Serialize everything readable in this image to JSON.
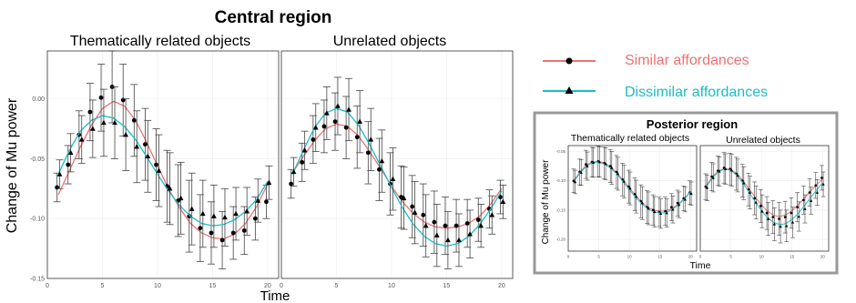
{
  "colors": {
    "similar": "#f07070",
    "dissimilar": "#1cbcc4",
    "frame": "#999999",
    "grid": "#ececec"
  },
  "central": {
    "title": "Central region",
    "ylabel": "Change of Mu power",
    "xlabel": "Time",
    "ticks_x": [
      "0",
      "5",
      "10",
      "15",
      "20"
    ],
    "ticks_y": [
      "0.00",
      "-0.05",
      "-0.10",
      "-0.15"
    ],
    "panels": [
      "Thematically related objects",
      "Unrelated objects"
    ]
  },
  "posterior": {
    "title": "Posterior region",
    "ylabel": "Change of Mu power",
    "xlabel": "Time",
    "ticks_x": [
      "0",
      "5",
      "10",
      "15",
      "20"
    ],
    "ticks_y": [
      "-0.05",
      "-0.10",
      "-0.15",
      "-0.20"
    ],
    "panels": [
      "Thematically related objects",
      "Unrelated objects"
    ]
  },
  "legend": {
    "similar": "Similar affordances",
    "dissimilar": "Dissimilar affordances"
  },
  "chart_data": [
    {
      "type": "line",
      "region": "central",
      "panel": "Thematically related objects",
      "x": [
        1,
        2,
        3,
        4,
        5,
        6,
        7,
        8,
        9,
        10,
        11,
        12,
        13,
        14,
        15,
        16,
        17,
        18,
        19,
        20
      ],
      "xlim": [
        0,
        21
      ],
      "ylim": [
        -0.15,
        0.04
      ],
      "series": [
        {
          "name": "Similar affordances",
          "marker": "circle",
          "points": [
            -0.074,
            -0.055,
            -0.03,
            -0.011,
            0.001,
            0.01,
            -0.001,
            -0.018,
            -0.038,
            -0.055,
            -0.073,
            -0.085,
            -0.098,
            -0.108,
            -0.112,
            -0.118,
            -0.112,
            -0.11,
            -0.1,
            -0.086
          ],
          "error": [
            0.012,
            0.016,
            0.02,
            0.024,
            0.028,
            0.03,
            0.03,
            0.03,
            0.03,
            0.03,
            0.03,
            0.03,
            0.03,
            0.028,
            0.026,
            0.024,
            0.022,
            0.02,
            0.018,
            0.014
          ],
          "fit": [
            -0.08,
            -0.06,
            -0.04,
            -0.022,
            -0.008,
            -0.002,
            -0.006,
            -0.018,
            -0.036,
            -0.056,
            -0.075,
            -0.091,
            -0.104,
            -0.112,
            -0.116,
            -0.117,
            -0.113,
            -0.104,
            -0.09,
            -0.071
          ]
        },
        {
          "name": "Dissimilar affordances",
          "marker": "triangle",
          "points": [
            -0.063,
            -0.045,
            -0.034,
            -0.025,
            -0.02,
            -0.02,
            -0.03,
            -0.04,
            -0.048,
            -0.06,
            -0.075,
            -0.083,
            -0.092,
            -0.096,
            -0.098,
            -0.099,
            -0.096,
            -0.094,
            -0.085,
            -0.07
          ],
          "error": [
            0.012,
            0.016,
            0.02,
            0.024,
            0.028,
            0.03,
            0.03,
            0.03,
            0.03,
            0.03,
            0.03,
            0.03,
            0.03,
            0.028,
            0.026,
            0.024,
            0.022,
            0.02,
            0.018,
            0.014
          ],
          "fit": [
            -0.063,
            -0.043,
            -0.027,
            -0.018,
            -0.014,
            -0.016,
            -0.023,
            -0.034,
            -0.048,
            -0.063,
            -0.077,
            -0.089,
            -0.098,
            -0.104,
            -0.106,
            -0.105,
            -0.101,
            -0.094,
            -0.084,
            -0.069
          ]
        }
      ]
    },
    {
      "type": "line",
      "region": "central",
      "panel": "Unrelated objects",
      "x": [
        1,
        2,
        3,
        4,
        5,
        6,
        7,
        8,
        9,
        10,
        11,
        12,
        13,
        14,
        15,
        16,
        17,
        18,
        19,
        20
      ],
      "xlim": [
        0,
        21
      ],
      "ylim": [
        -0.15,
        0.04
      ],
      "series": [
        {
          "name": "Similar affordances",
          "marker": "circle",
          "points": [
            -0.071,
            -0.053,
            -0.034,
            -0.023,
            -0.019,
            -0.024,
            -0.032,
            -0.045,
            -0.059,
            -0.071,
            -0.082,
            -0.09,
            -0.097,
            -0.103,
            -0.106,
            -0.106,
            -0.104,
            -0.101,
            -0.092,
            -0.082
          ],
          "error": [
            0.012,
            0.016,
            0.02,
            0.022,
            0.024,
            0.026,
            0.026,
            0.026,
            0.026,
            0.026,
            0.026,
            0.026,
            0.026,
            0.026,
            0.024,
            0.022,
            0.02,
            0.018,
            0.016,
            0.014
          ],
          "fit": [
            -0.062,
            -0.048,
            -0.035,
            -0.025,
            -0.021,
            -0.023,
            -0.031,
            -0.044,
            -0.058,
            -0.073,
            -0.086,
            -0.096,
            -0.103,
            -0.107,
            -0.108,
            -0.107,
            -0.104,
            -0.098,
            -0.088,
            -0.075
          ]
        },
        {
          "name": "Dissimilar affordances",
          "marker": "triangle",
          "points": [
            -0.061,
            -0.043,
            -0.024,
            -0.012,
            -0.006,
            -0.009,
            -0.019,
            -0.034,
            -0.052,
            -0.067,
            -0.083,
            -0.095,
            -0.106,
            -0.114,
            -0.118,
            -0.118,
            -0.113,
            -0.106,
            -0.097,
            -0.086
          ],
          "error": [
            0.012,
            0.016,
            0.02,
            0.022,
            0.024,
            0.026,
            0.026,
            0.026,
            0.026,
            0.026,
            0.026,
            0.026,
            0.026,
            0.026,
            0.024,
            0.022,
            0.02,
            0.018,
            0.016,
            0.014
          ],
          "fit": [
            -0.063,
            -0.043,
            -0.024,
            -0.012,
            -0.008,
            -0.011,
            -0.022,
            -0.038,
            -0.056,
            -0.074,
            -0.091,
            -0.105,
            -0.115,
            -0.121,
            -0.123,
            -0.121,
            -0.115,
            -0.105,
            -0.092,
            -0.077
          ]
        }
      ]
    },
    {
      "type": "line",
      "region": "posterior",
      "panel": "Thematically related objects",
      "x": [
        1,
        2,
        3,
        4,
        5,
        6,
        7,
        8,
        9,
        10,
        11,
        12,
        13,
        14,
        15,
        16,
        17,
        18,
        19,
        20
      ],
      "xlim": [
        0,
        21
      ],
      "ylim": [
        -0.22,
        -0.04
      ],
      "series": [
        {
          "name": "Similar affordances",
          "marker": "circle",
          "points": [
            -0.1,
            -0.085,
            -0.072,
            -0.068,
            -0.067,
            -0.07,
            -0.075,
            -0.085,
            -0.098,
            -0.11,
            -0.123,
            -0.135,
            -0.145,
            -0.15,
            -0.153,
            -0.152,
            -0.145,
            -0.138,
            -0.13,
            -0.12
          ],
          "error": [
            0.02,
            0.022,
            0.024,
            0.025,
            0.026,
            0.027,
            0.028,
            0.028,
            0.028,
            0.028,
            0.028,
            0.028,
            0.028,
            0.026,
            0.025,
            0.024,
            0.023,
            0.022,
            0.021,
            0.02
          ],
          "fit": [
            -0.098,
            -0.084,
            -0.073,
            -0.068,
            -0.067,
            -0.07,
            -0.077,
            -0.087,
            -0.099,
            -0.112,
            -0.125,
            -0.136,
            -0.145,
            -0.15,
            -0.152,
            -0.151,
            -0.147,
            -0.14,
            -0.13,
            -0.118
          ]
        },
        {
          "name": "Dissimilar affordances",
          "marker": "triangle",
          "points": [
            -0.102,
            -0.086,
            -0.075,
            -0.069,
            -0.068,
            -0.071,
            -0.078,
            -0.088,
            -0.101,
            -0.113,
            -0.127,
            -0.138,
            -0.147,
            -0.153,
            -0.156,
            -0.155,
            -0.149,
            -0.141,
            -0.132,
            -0.122
          ],
          "error": [
            0.02,
            0.022,
            0.024,
            0.025,
            0.026,
            0.027,
            0.028,
            0.028,
            0.028,
            0.028,
            0.028,
            0.028,
            0.028,
            0.026,
            0.025,
            0.024,
            0.023,
            0.022,
            0.021,
            0.02
          ],
          "fit": [
            -0.1,
            -0.086,
            -0.075,
            -0.069,
            -0.068,
            -0.072,
            -0.079,
            -0.089,
            -0.102,
            -0.115,
            -0.128,
            -0.139,
            -0.148,
            -0.153,
            -0.155,
            -0.154,
            -0.149,
            -0.141,
            -0.131,
            -0.119
          ]
        }
      ]
    },
    {
      "type": "line",
      "region": "posterior",
      "panel": "Unrelated objects",
      "x": [
        1,
        2,
        3,
        4,
        5,
        6,
        7,
        8,
        9,
        10,
        11,
        12,
        13,
        14,
        15,
        16,
        17,
        18,
        19,
        20
      ],
      "xlim": [
        0,
        21
      ],
      "ylim": [
        -0.22,
        -0.04
      ],
      "series": [
        {
          "name": "Similar affordances",
          "marker": "circle",
          "points": [
            -0.11,
            -0.093,
            -0.083,
            -0.078,
            -0.08,
            -0.088,
            -0.1,
            -0.115,
            -0.13,
            -0.143,
            -0.155,
            -0.162,
            -0.165,
            -0.162,
            -0.155,
            -0.145,
            -0.133,
            -0.12,
            -0.108,
            -0.095
          ],
          "error": [
            0.022,
            0.024,
            0.025,
            0.026,
            0.027,
            0.028,
            0.028,
            0.028,
            0.028,
            0.028,
            0.028,
            0.028,
            0.028,
            0.027,
            0.026,
            0.025,
            0.024,
            0.023,
            0.022,
            0.021
          ],
          "fit": [
            -0.108,
            -0.093,
            -0.083,
            -0.079,
            -0.081,
            -0.088,
            -0.1,
            -0.114,
            -0.128,
            -0.141,
            -0.152,
            -0.159,
            -0.161,
            -0.158,
            -0.151,
            -0.141,
            -0.13,
            -0.118,
            -0.107,
            -0.097
          ]
        },
        {
          "name": "Dissimilar affordances",
          "marker": "triangle",
          "points": [
            -0.112,
            -0.095,
            -0.084,
            -0.08,
            -0.082,
            -0.091,
            -0.104,
            -0.12,
            -0.137,
            -0.152,
            -0.165,
            -0.174,
            -0.178,
            -0.177,
            -0.171,
            -0.161,
            -0.148,
            -0.134,
            -0.12,
            -0.106
          ],
          "error": [
            0.022,
            0.024,
            0.025,
            0.026,
            0.027,
            0.028,
            0.028,
            0.028,
            0.028,
            0.028,
            0.028,
            0.028,
            0.028,
            0.027,
            0.026,
            0.025,
            0.024,
            0.023,
            0.022,
            0.021
          ],
          "fit": [
            -0.11,
            -0.095,
            -0.084,
            -0.08,
            -0.082,
            -0.091,
            -0.104,
            -0.12,
            -0.136,
            -0.151,
            -0.163,
            -0.171,
            -0.175,
            -0.173,
            -0.166,
            -0.156,
            -0.143,
            -0.129,
            -0.116,
            -0.104
          ]
        }
      ]
    }
  ]
}
